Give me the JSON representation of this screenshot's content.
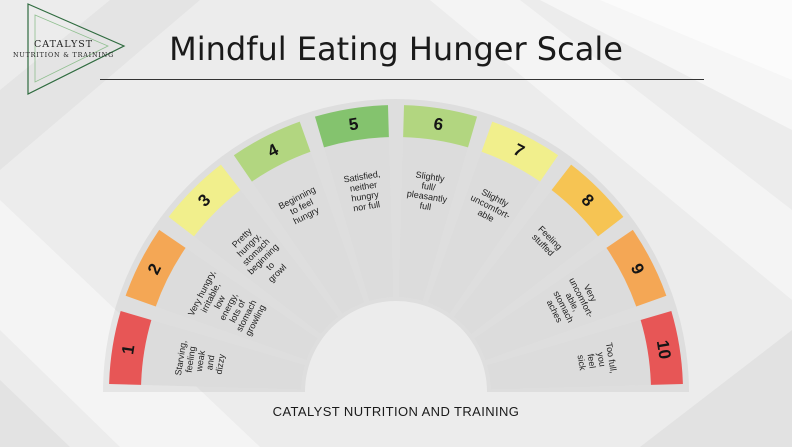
{
  "logo": {
    "line1": "CATALYST",
    "line2": "NUTRITION & TRAINING"
  },
  "title": "Mindful Eating Hunger Scale",
  "footer": "CATALYST NUTRITION AND TRAINING",
  "scale": [
    {
      "level": "1",
      "color": "#e75656",
      "lines": [
        "Starving,",
        "feeling",
        "weak",
        "and",
        "dizzy"
      ]
    },
    {
      "level": "2",
      "color": "#f4a755",
      "lines": [
        "Very hungry,",
        "irritable,",
        "low",
        "energy,",
        "lots of",
        "stomach",
        "growling"
      ]
    },
    {
      "level": "3",
      "color": "#f1ef8c",
      "lines": [
        "Pretty",
        "hungry,",
        "stomach",
        "beginning",
        "to",
        "growl"
      ]
    },
    {
      "level": "4",
      "color": "#b2d680",
      "lines": [
        "Beginning",
        "to feel",
        "hungry"
      ]
    },
    {
      "level": "5",
      "color": "#84c36e",
      "lines": [
        "Satisfied,",
        "neither",
        "hungry",
        "nor full"
      ]
    },
    {
      "level": "6",
      "color": "#b2d680",
      "lines": [
        "Slightly",
        "full/",
        "pleasantly",
        "full"
      ]
    },
    {
      "level": "7",
      "color": "#f1ef8c",
      "lines": [
        "Slightly",
        "uncomfort-",
        "able"
      ]
    },
    {
      "level": "8",
      "color": "#f6c453",
      "lines": [
        "Feeling",
        "stuffed"
      ]
    },
    {
      "level": "9",
      "color": "#f4a755",
      "lines": [
        "Very",
        "uncomfort-",
        "able,",
        "stomach",
        "aches"
      ]
    },
    {
      "level": "10",
      "color": "#e75656",
      "lines": [
        "Too full,",
        "you",
        "feel",
        "sick"
      ]
    }
  ]
}
